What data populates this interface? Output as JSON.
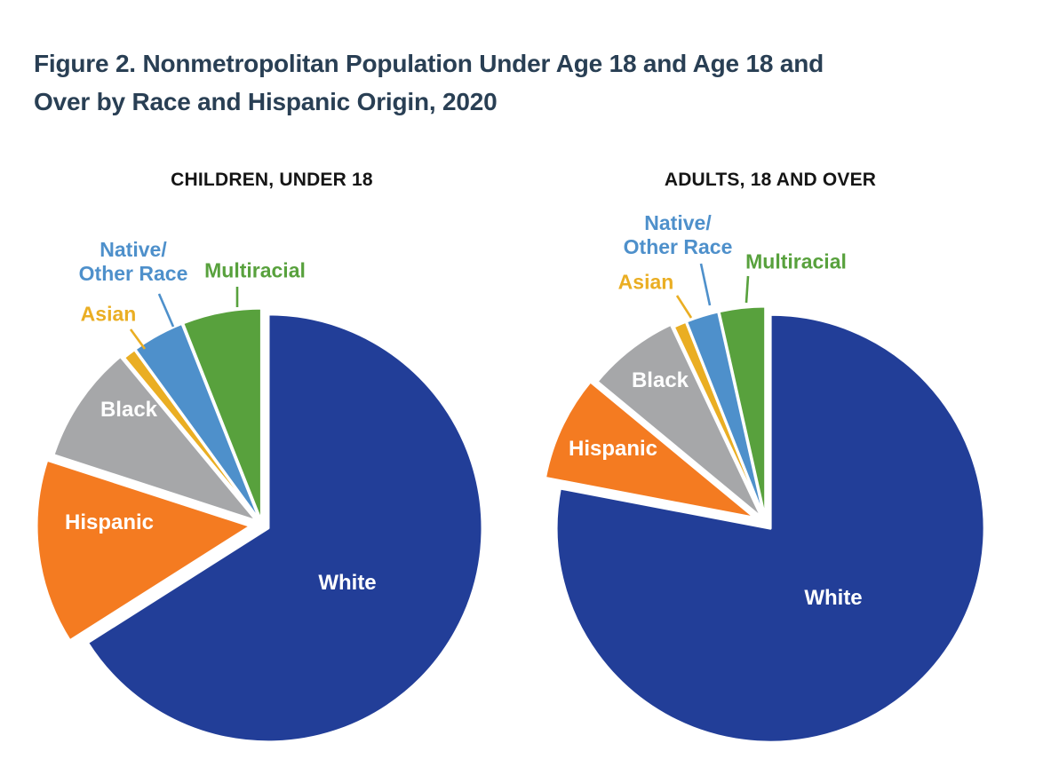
{
  "figure": {
    "title_line1": "Figure 2. Nonmetropolitan Population Under Age 18 and Age 18 and",
    "title_line2": "Over by Race and Hispanic Origin, 2020",
    "title_color": "#293f54",
    "background_color": "#ffffff"
  },
  "chart_data": [
    {
      "type": "pie",
      "title": "CHILDREN, UNDER 18",
      "categories": [
        "White",
        "Hispanic",
        "Black",
        "Asian",
        "Native/Other Race",
        "Multiracial"
      ],
      "values": [
        66,
        14,
        9,
        1,
        4,
        6
      ],
      "colors": [
        "#223e98",
        "#f47b21",
        "#a6a7a9",
        "#eaae23",
        "#4e90cb",
        "#58a13d"
      ],
      "label_style": "direct-labels-no-values",
      "value_labels_shown": false,
      "start_angle": "12-oclock",
      "direction": "clockwise",
      "on_slice_labels": [
        "White",
        "Hispanic",
        "Black"
      ],
      "callout_labels": [
        "Asian",
        "Native/Other Race",
        "Multiracial"
      ]
    },
    {
      "type": "pie",
      "title": "ADULTS, 18 AND OVER",
      "categories": [
        "White",
        "Hispanic",
        "Black",
        "Asian",
        "Native/Other Race",
        "Multiracial"
      ],
      "values": [
        78,
        8,
        7,
        1,
        2.5,
        3.5
      ],
      "colors": [
        "#223e98",
        "#f47b21",
        "#a6a7a9",
        "#eaae23",
        "#4e90cb",
        "#58a13d"
      ],
      "label_style": "direct-labels-no-values",
      "value_labels_shown": false,
      "start_angle": "12-oclock",
      "direction": "clockwise",
      "on_slice_labels": [
        "White",
        "Hispanic",
        "Black"
      ],
      "callout_labels": [
        "Asian",
        "Native/Other Race",
        "Multiracial"
      ]
    }
  ]
}
